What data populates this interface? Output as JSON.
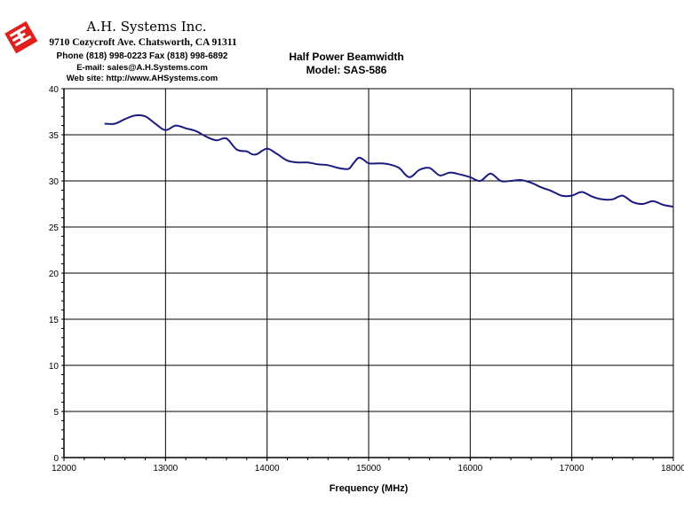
{
  "company": {
    "name": "A.H. Systems Inc.",
    "address": "9710 Cozycroft Ave. Chatsworth, CA 91311",
    "phone": "Phone (818) 998-0223 Fax (818) 998-6892",
    "email": "E-mail: sales@A.H.Systems.com",
    "web": "Web site: http://www.AHSystems.com",
    "logo_icon": "ahs-logo-icon",
    "logo_color": "#e0201c"
  },
  "chart_data": {
    "type": "line",
    "title": "Half Power Beamwidth",
    "subtitle": "Model: SAS-586",
    "xlabel": "Frequency (MHz)",
    "ylabel": "",
    "xlim": [
      12000,
      18000
    ],
    "ylim": [
      0,
      40
    ],
    "x_ticks": [
      12000,
      13000,
      14000,
      15000,
      16000,
      17000,
      18000
    ],
    "y_ticks": [
      0,
      5,
      10,
      15,
      20,
      25,
      30,
      35,
      40
    ],
    "grid": true,
    "legend": "none",
    "line_color": "#1a1a80",
    "series": [
      {
        "x": [
          12400,
          12500,
          12600,
          12700,
          12800,
          12900,
          13000,
          13100,
          13200,
          13300,
          13400,
          13500,
          13600,
          13700,
          13800,
          13850,
          13900,
          14000,
          14100,
          14200,
          14300,
          14400,
          14500,
          14600,
          14700,
          14800,
          14850,
          14900,
          14950,
          15000,
          15100,
          15200,
          15300,
          15400,
          15500,
          15600,
          15700,
          15800,
          15900,
          16000,
          16100,
          16200,
          16300,
          16400,
          16500,
          16600,
          16700,
          16800,
          16900,
          17000,
          17100,
          17200,
          17300,
          17400,
          17500,
          17600,
          17700,
          17800,
          17900,
          18000
        ],
        "y": [
          36.2,
          36.2,
          36.7,
          37.1,
          37.0,
          36.2,
          35.5,
          36.0,
          35.7,
          35.4,
          34.8,
          34.4,
          34.6,
          33.4,
          33.2,
          32.9,
          32.9,
          33.5,
          32.9,
          32.2,
          32.0,
          32.0,
          31.8,
          31.7,
          31.4,
          31.3,
          31.9,
          32.5,
          32.3,
          31.9,
          31.9,
          31.8,
          31.4,
          30.4,
          31.2,
          31.4,
          30.6,
          30.9,
          30.7,
          30.4,
          30.0,
          30.8,
          30.0,
          30.0,
          30.1,
          29.8,
          29.3,
          28.9,
          28.4,
          28.4,
          28.8,
          28.3,
          28.0,
          28.0,
          28.4,
          27.7,
          27.5,
          27.8,
          27.4,
          27.2
        ]
      }
    ]
  }
}
